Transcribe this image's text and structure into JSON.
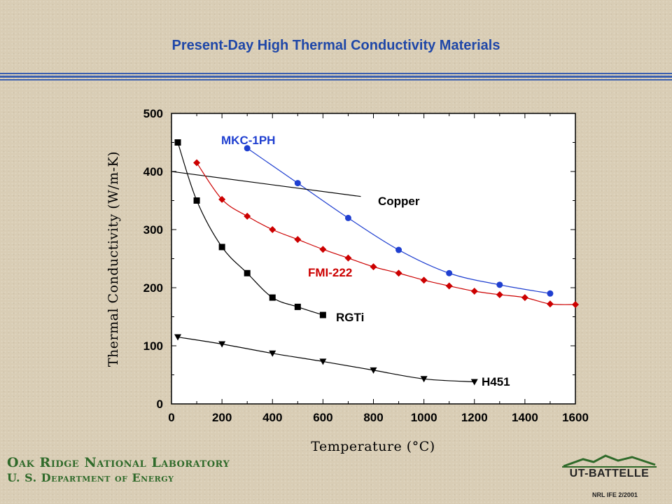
{
  "slide": {
    "title": "Present-Day High Thermal Conductivity Materials",
    "org_name": "Oak Ridge National Laboratory",
    "dept_name": "U. S. Department of Energy",
    "logo_text": "UT-BATTELLE",
    "footer_ref": "NRL IFE 2/2001",
    "colors": {
      "title": "#1f47a8",
      "org": "#2f6a2a",
      "rule": "#3a5fb0"
    }
  },
  "chart_data": {
    "type": "line",
    "xlabel": "Temperature (°C)",
    "ylabel": "Thermal Conductivity (W/m-K)",
    "xlim": [
      0,
      1600
    ],
    "ylim": [
      0,
      500
    ],
    "xticks": [
      0,
      200,
      400,
      600,
      800,
      1000,
      1200,
      1400,
      1600
    ],
    "yticks": [
      0,
      100,
      200,
      300,
      400,
      500
    ],
    "grid": false,
    "series": [
      {
        "name": "MKC-1PH",
        "color": "#1f3fd0",
        "marker": "circle",
        "x": [
          300,
          500,
          700,
          900,
          1100,
          1300,
          1500
        ],
        "y": [
          440,
          380,
          320,
          265,
          225,
          205,
          190
        ]
      },
      {
        "name": "Copper",
        "color": "#000000",
        "marker": "none",
        "x": [
          0,
          750
        ],
        "y": [
          400,
          357
        ]
      },
      {
        "name": "FMI-222",
        "color": "#cc0000",
        "marker": "diamond",
        "x": [
          100,
          200,
          300,
          400,
          500,
          600,
          700,
          800,
          900,
          1000,
          1100,
          1200,
          1300,
          1400,
          1500,
          1600
        ],
        "y": [
          415,
          352,
          323,
          300,
          283,
          266,
          251,
          236,
          225,
          213,
          203,
          194,
          188,
          183,
          172,
          171
        ]
      },
      {
        "name": "RGTi",
        "color": "#000000",
        "marker": "square",
        "x": [
          25,
          100,
          200,
          300,
          400,
          500,
          600
        ],
        "y": [
          450,
          350,
          270,
          225,
          183,
          167,
          153
        ]
      },
      {
        "name": "H451",
        "color": "#000000",
        "marker": "triangle",
        "x": [
          25,
          200,
          400,
          600,
          800,
          1000,
          1200
        ],
        "y": [
          115,
          103,
          87,
          73,
          58,
          43,
          38
        ]
      }
    ]
  }
}
